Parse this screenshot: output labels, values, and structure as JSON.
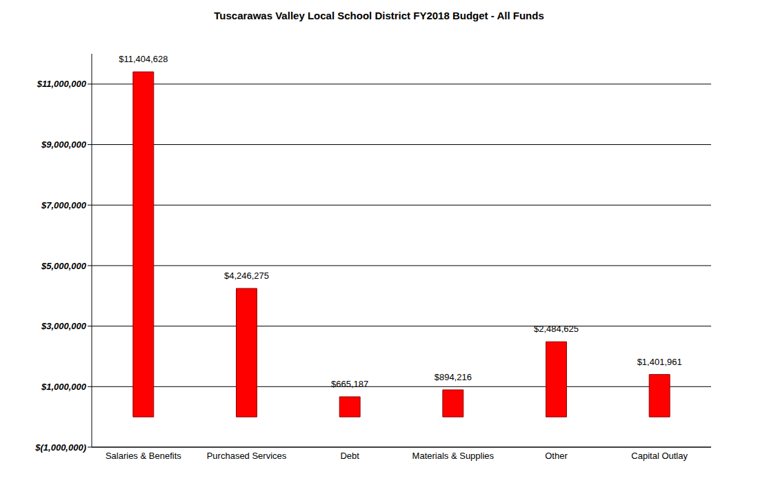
{
  "chart_data": {
    "type": "bar",
    "title": "Tuscarawas Valley Local School District FY2018 Budget - All Funds",
    "categories": [
      "Salaries & Benefits",
      "Purchased Services",
      "Debt",
      "Materials & Supplies",
      "Other",
      "Capital Outlay"
    ],
    "values": [
      11404628,
      4246275,
      665187,
      894216,
      2484625,
      1401961
    ],
    "value_labels": [
      "$11,404,628",
      "$4,246,275",
      "$665,187",
      "$894,216",
      "$2,484,625",
      "$1,401,961"
    ],
    "color": "#ff0000",
    "ylim": [
      -1000000,
      12000000
    ],
    "yticks": [
      {
        "value": -1000000,
        "label": "$(1,000,000)"
      },
      {
        "value": 1000000,
        "label": "$1,000,000"
      },
      {
        "value": 3000000,
        "label": "$3,000,000"
      },
      {
        "value": 5000000,
        "label": "$5,000,000"
      },
      {
        "value": 7000000,
        "label": "$7,000,000"
      },
      {
        "value": 9000000,
        "label": "$9,000,000"
      },
      {
        "value": 11000000,
        "label": "$11,000,000"
      }
    ],
    "grid": true,
    "data_labels": true
  }
}
